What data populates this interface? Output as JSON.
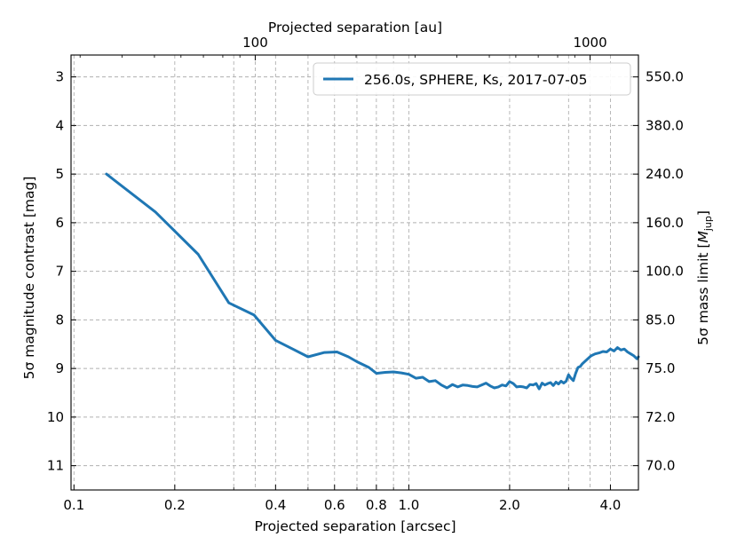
{
  "chart_data": {
    "type": "line",
    "xlabel": "Projected separation [arcsec]",
    "x2label": "Projected separation [au]",
    "ylabel": "5σ magnitude contrast [mag]",
    "y2label": "5σ mass limit [M_jup]",
    "x_scale": "log",
    "xlim": [
      0.098,
      4.85
    ],
    "ylim": [
      11.5,
      2.55
    ],
    "y_inverted": true,
    "grid": true,
    "legend_position": "top-right",
    "x_major_ticks": [
      0.1,
      0.2,
      0.4,
      0.6,
      0.8,
      1.0,
      2.0,
      4.0
    ],
    "x_major_labels": [
      "0.1",
      "0.2",
      "0.4",
      "0.6",
      "0.8",
      "1.0",
      "2.0",
      "4.0"
    ],
    "x_minor_grid": [
      0.3,
      0.5,
      0.7,
      0.9,
      3.0
    ],
    "top_axis_ticks": [
      {
        "arcsec": 0.3478,
        "label": "100"
      },
      {
        "arcsec": 3.478,
        "label": "1000"
      }
    ],
    "top_minor_grid": [
      0.0696,
      0.1043,
      0.1391,
      0.1739,
      0.2087,
      0.2435,
      0.2783,
      0.313,
      0.6957,
      1.0435,
      1.3913,
      1.7391,
      2.087,
      2.4348,
      2.7826,
      3.1304
    ],
    "y_ticks": [
      3,
      4,
      5,
      6,
      7,
      8,
      9,
      10,
      11
    ],
    "y_tick_labels": [
      "3",
      "4",
      "5",
      "6",
      "7",
      "8",
      "9",
      "10",
      "11"
    ],
    "y2_tick_labels": [
      "550.0",
      "380.0",
      "240.0",
      "160.0",
      "100.0",
      "85.0",
      "75.0",
      "72.0",
      "70.0"
    ],
    "series": [
      {
        "name": "256.0s, SPHERE, Ks, 2017-07-05",
        "color": "#1f77b4",
        "x": [
          0.125,
          0.175,
          0.235,
          0.29,
          0.345,
          0.4,
          0.45,
          0.5,
          0.56,
          0.61,
          0.66,
          0.7,
          0.76,
          0.8,
          0.85,
          0.9,
          0.95,
          1.0,
          1.05,
          1.1,
          1.15,
          1.2,
          1.25,
          1.3,
          1.35,
          1.4,
          1.45,
          1.5,
          1.55,
          1.6,
          1.65,
          1.7,
          1.75,
          1.8,
          1.85,
          1.9,
          1.95,
          2.0,
          2.05,
          2.1,
          2.15,
          2.2,
          2.25,
          2.3,
          2.35,
          2.4,
          2.45,
          2.5,
          2.55,
          2.6,
          2.65,
          2.7,
          2.75,
          2.8,
          2.85,
          2.9,
          2.95,
          3.0,
          3.05,
          3.1,
          3.15,
          3.2,
          3.25,
          3.3,
          3.4,
          3.5,
          3.6,
          3.7,
          3.8,
          3.9,
          4.0,
          4.1,
          4.2,
          4.3,
          4.4,
          4.5,
          4.6,
          4.7,
          4.8,
          4.85
        ],
        "y": [
          5.0,
          5.78,
          6.65,
          7.65,
          7.9,
          8.42,
          8.6,
          8.76,
          8.67,
          8.66,
          8.76,
          8.86,
          8.98,
          9.1,
          9.08,
          9.07,
          9.09,
          9.12,
          9.2,
          9.18,
          9.27,
          9.25,
          9.34,
          9.4,
          9.33,
          9.38,
          9.34,
          9.35,
          9.37,
          9.38,
          9.34,
          9.3,
          9.36,
          9.4,
          9.38,
          9.34,
          9.36,
          9.27,
          9.31,
          9.38,
          9.37,
          9.38,
          9.4,
          9.33,
          9.34,
          9.31,
          9.42,
          9.3,
          9.34,
          9.31,
          9.29,
          9.35,
          9.28,
          9.32,
          9.26,
          9.3,
          9.26,
          9.13,
          9.2,
          9.25,
          9.1,
          8.98,
          8.96,
          8.9,
          8.82,
          8.74,
          8.7,
          8.68,
          8.65,
          8.66,
          8.6,
          8.64,
          8.57,
          8.62,
          8.6,
          8.66,
          8.7,
          8.74,
          8.8,
          8.76
        ]
      }
    ]
  }
}
